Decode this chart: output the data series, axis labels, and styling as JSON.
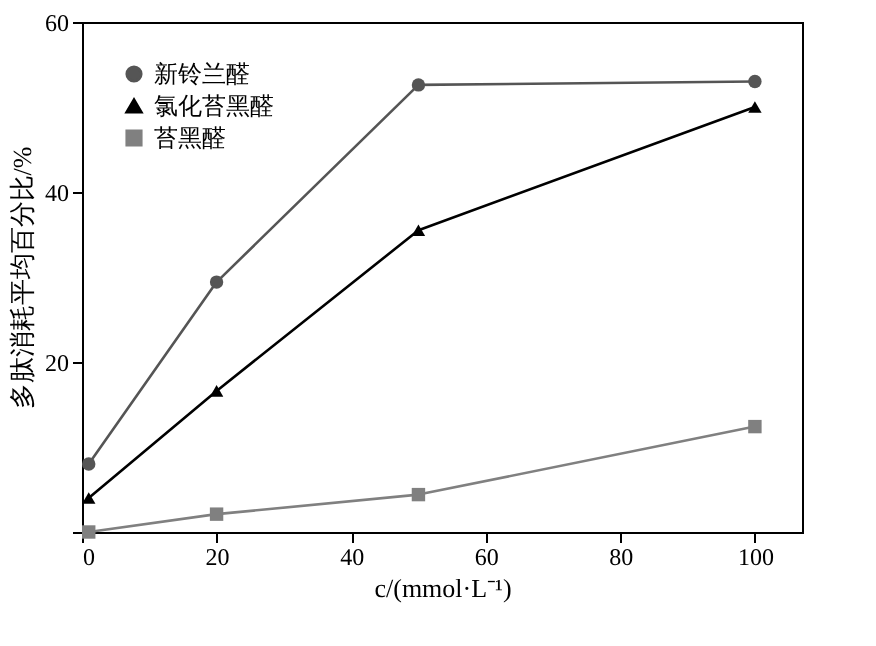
{
  "chart_data": {
    "type": "line",
    "xlabel": "c/(mmol·L⁻¹)",
    "ylabel": "多肽消耗平均百分比/%",
    "x": [
      1,
      20,
      50,
      100
    ],
    "series": [
      {
        "name": "新铃兰醛",
        "color": "#555555",
        "marker": "circle",
        "values": [
          8,
          29.4,
          52.6,
          53
        ]
      },
      {
        "name": "氯化苔黑醛",
        "color": "#000000",
        "marker": "triangle",
        "values": [
          4,
          16.6,
          35.5,
          50
        ]
      },
      {
        "name": "苔黑醛",
        "color": "#808080",
        "marker": "square",
        "values": [
          0,
          2.1,
          4.4,
          12.4
        ]
      }
    ],
    "xlim": [
      0,
      107
    ],
    "xticks": [
      0,
      20,
      40,
      60,
      80,
      100
    ],
    "ylim": [
      0,
      60
    ],
    "yticks": [
      {
        "value": 0,
        "label": null
      },
      20,
      40,
      60
    ],
    "grid": false,
    "legend": "top left",
    "line_style": "solid"
  }
}
